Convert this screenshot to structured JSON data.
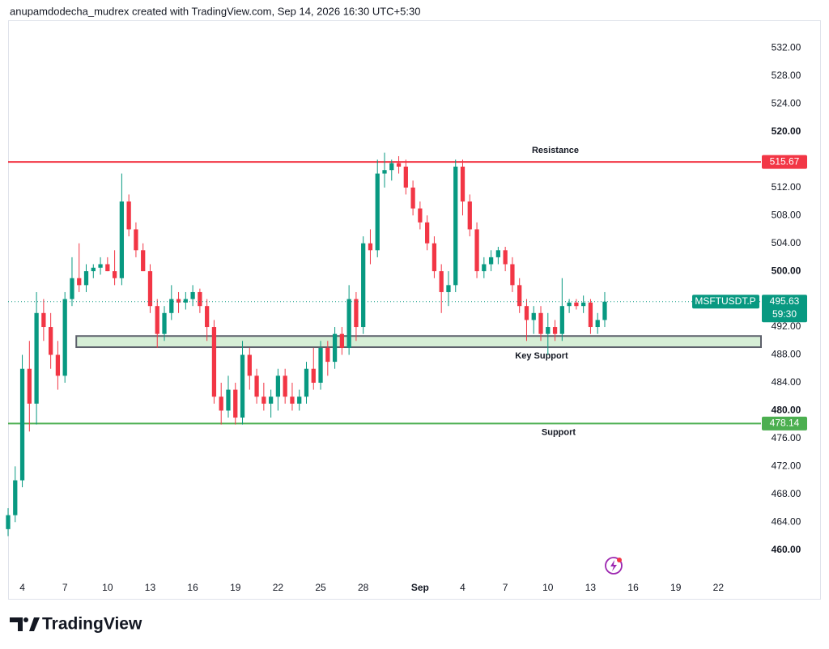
{
  "header": "anupamdodecha_mudrex created with TradingView.com, Sep 14, 2026 16:30 UTC+5:30",
  "footer": {
    "brand": "TradingView"
  },
  "chart_data": {
    "type": "candlestick",
    "symbol": "MSFTUSDT.P",
    "countdown": "59:30",
    "up_color": "#089981",
    "down_color": "#f23645",
    "x": [
      3,
      3.5,
      4,
      4.5,
      5,
      5.5,
      6,
      6.5,
      7,
      7.5,
      8,
      8.5,
      9,
      9.5,
      10,
      10.5,
      11,
      11.5,
      12,
      12.5,
      13,
      13.5,
      14,
      14.5,
      15,
      15.5,
      16,
      16.5,
      17,
      17.5,
      18,
      18.5,
      19,
      19.5,
      20,
      20.5,
      21,
      21.5,
      22,
      22.5,
      23,
      23.5,
      24,
      24.5,
      25,
      25.5,
      26,
      26.5,
      27,
      27.5,
      28,
      28.5,
      29,
      29.5,
      30,
      30.5,
      31,
      31.5,
      32,
      32.5,
      33,
      33.5,
      34,
      34.5,
      35,
      35.5,
      36,
      36.5,
      37,
      37.5,
      38,
      38.5,
      39,
      39.5,
      40,
      40.5,
      41,
      41.5,
      42,
      42.5,
      43,
      43.5,
      44,
      44.5,
      45
    ],
    "open": [
      463,
      465,
      470,
      486,
      481,
      494,
      492,
      488,
      485,
      496,
      499,
      498,
      500,
      500.5,
      501,
      500,
      499,
      510,
      506,
      503,
      500,
      495,
      491,
      494,
      496,
      495.5,
      496,
      497,
      495,
      492,
      482,
      480,
      483,
      479,
      488,
      485,
      482,
      481,
      482,
      485,
      482,
      481,
      482,
      486,
      484,
      489,
      487,
      491,
      489,
      496,
      492,
      504,
      503,
      514,
      514.5,
      515.5,
      515,
      512,
      509,
      507,
      504,
      500,
      497,
      498,
      515,
      510,
      506,
      500,
      501,
      502,
      503,
      501,
      498,
      495,
      493,
      494,
      491,
      492,
      491,
      495,
      495.5,
      495,
      495.5,
      492,
      493
    ],
    "high": [
      466,
      472,
      488,
      490,
      497,
      496,
      494,
      490,
      497,
      502,
      504,
      501,
      501,
      502,
      502,
      503,
      514,
      511,
      507,
      504,
      501,
      496,
      495,
      498,
      497,
      497,
      498,
      497.5,
      496,
      493,
      484,
      485,
      484,
      490,
      489,
      486,
      484,
      483,
      486,
      486,
      484,
      483,
      487,
      489,
      490,
      490,
      492,
      492,
      498,
      497,
      505,
      506,
      516,
      517,
      516,
      516.5,
      516,
      513,
      510,
      508,
      505,
      501,
      500,
      516,
      516,
      511,
      507,
      502,
      503,
      503.5,
      503.5,
      502,
      499,
      496,
      495,
      495,
      494,
      493,
      499,
      496,
      496,
      496.5,
      496,
      494,
      497
    ],
    "low": [
      462,
      464,
      469,
      477,
      478,
      490,
      486,
      483,
      484,
      495,
      497,
      497,
      499,
      499.5,
      500,
      498,
      498,
      505,
      502,
      500,
      494,
      489,
      490,
      493,
      494,
      494.5,
      495,
      494,
      490,
      481,
      478,
      479,
      478,
      478,
      483,
      481,
      480,
      479,
      480,
      481,
      480,
      480,
      481,
      483,
      483,
      485,
      486,
      488,
      488,
      490,
      491,
      501,
      502,
      512,
      513,
      514,
      511,
      508,
      506,
      503,
      499,
      494,
      495,
      497,
      508,
      505,
      499,
      499,
      500,
      501,
      500,
      497,
      494,
      490,
      491,
      490,
      488,
      490,
      490,
      494,
      494.5,
      494,
      491,
      491,
      492
    ],
    "close": [
      465,
      470,
      486,
      481,
      494,
      492,
      488,
      485,
      496,
      499,
      498,
      500,
      500.5,
      501,
      500,
      499,
      510,
      506,
      503,
      500,
      495,
      491,
      494,
      496,
      495.5,
      496,
      497,
      495,
      492,
      482,
      480,
      483,
      479,
      488,
      485,
      482,
      481,
      482,
      485,
      482,
      481,
      482,
      486,
      484,
      489,
      487,
      491,
      489,
      496,
      492,
      504,
      503,
      514,
      514.5,
      515.5,
      515,
      512,
      509,
      507,
      504,
      500,
      497,
      498,
      515,
      510,
      506,
      500,
      501,
      502,
      503,
      501,
      498,
      495,
      493,
      494,
      491,
      492,
      491,
      495,
      495.5,
      495,
      495.5,
      492,
      493,
      495.63
    ],
    "xlim": [
      3,
      56
    ],
    "ylim": [
      453,
      536
    ],
    "xticks": [
      4,
      7,
      10,
      13,
      16,
      19,
      22,
      25,
      28,
      {
        "value": 32,
        "label": "Sep"
      },
      {
        "value": 35,
        "label": "4"
      },
      {
        "value": 38,
        "label": "7"
      },
      {
        "value": 41,
        "label": "10"
      },
      {
        "value": 44,
        "label": "13"
      },
      {
        "value": 47,
        "label": "16"
      },
      {
        "value": 50,
        "label": "19"
      },
      {
        "value": 53,
        "label": "22"
      }
    ],
    "yticks": [
      {
        "value": 460,
        "label": "460.00"
      },
      {
        "value": 464,
        "label": "464.00"
      },
      {
        "value": 468,
        "label": "468.00"
      },
      {
        "value": 472,
        "label": "472.00"
      },
      {
        "value": 476,
        "label": "476.00"
      },
      {
        "value": 480,
        "label": "480.00"
      },
      {
        "value": 484,
        "label": "484.00"
      },
      {
        "value": 488,
        "label": "488.00"
      },
      {
        "value": 492,
        "label": "492.00"
      },
      {
        "value": 500,
        "label": "500.00"
      },
      {
        "value": 504,
        "label": "504.00"
      },
      {
        "value": 508,
        "label": "508.00"
      },
      {
        "value": 512,
        "label": "512.00"
      },
      {
        "value": 520,
        "label": "520.00"
      },
      {
        "value": 524,
        "label": "524.00"
      },
      {
        "value": 528,
        "label": "528.00"
      },
      {
        "value": 532,
        "label": "532.00"
      }
    ],
    "levels": [
      {
        "name": "Resistance",
        "value": 515.67,
        "color": "#f23645"
      },
      {
        "name": "Support",
        "value": 478.14,
        "color": "#4caf50"
      }
    ],
    "zone": {
      "name": "Key Support",
      "low": 489.1,
      "high": 490.7,
      "start": 7.8,
      "color": "#d6eed6"
    }
  }
}
